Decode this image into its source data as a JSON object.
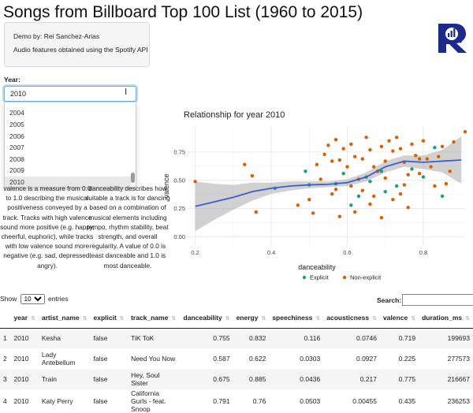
{
  "page": {
    "title": "Songs from Billboard Top 100 List (1960 to 2015)",
    "credits": [
      "Demo by: Rei Sanchez-Arias",
      "Audio features obtained using the Spotify API"
    ]
  },
  "year_select": {
    "label": "Year:",
    "value": "2010",
    "options": [
      "2004",
      "2005",
      "2006",
      "2007",
      "2008",
      "2009",
      "2010"
    ],
    "selected": "2010"
  },
  "descriptions": {
    "valence": "valence is a measure from 0.0 to 1.0 describing the musical positiveness conveyed by a track. Tracks with high valence sound more positive (e.g. happy, cheerful, euphoric), while tracks with low valence sound more negative (e.g. sad, depressed, angry).",
    "danceability": "danceability describes how suitable a track is for dancing based on a combination of musical elements including tempo, rhythm stability, beat strength, and overall regularity. A value of 0.0 is least danceable and 1.0 is most danceable."
  },
  "logo": {
    "letter": "R",
    "color": "#1c2a8c",
    "icon": "r-logo-icon"
  },
  "chart_data": {
    "type": "scatter",
    "title": "Relationship for year 2010",
    "xlabel": "danceability",
    "ylabel": "valence",
    "xlim": [
      0.18,
      0.91
    ],
    "ylim": [
      -0.08,
      0.98
    ],
    "xticks": [
      "0.2",
      "0.4",
      "0.6",
      "0.8"
    ],
    "yticks": [
      "0.00",
      "0.25",
      "0.50",
      "0.75"
    ],
    "grid": true,
    "legend_position": "bottom",
    "legend_title": "",
    "series": [
      {
        "name": "Explicit",
        "color": "#1b9e77",
        "points": [
          [
            0.41,
            0.43
          ],
          [
            0.49,
            0.58
          ],
          [
            0.5,
            0.46
          ],
          [
            0.59,
            0.56
          ],
          [
            0.61,
            0.28
          ],
          [
            0.63,
            0.36
          ],
          [
            0.65,
            0.53
          ],
          [
            0.66,
            0.49
          ],
          [
            0.69,
            0.58
          ],
          [
            0.73,
            0.45
          ],
          [
            0.77,
            0.6
          ],
          [
            0.8,
            0.53
          ],
          [
            0.83,
            0.79
          ],
          [
            0.57,
            0.47
          ],
          [
            0.85,
            0.36
          ],
          [
            0.7,
            0.4
          ]
        ]
      },
      {
        "name": "Non-explicit",
        "color": "#d95f02",
        "points": [
          [
            0.2,
            0.49
          ],
          [
            0.33,
            0.64
          ],
          [
            0.35,
            0.54
          ],
          [
            0.36,
            0.22
          ],
          [
            0.47,
            0.28
          ],
          [
            0.5,
            0.33
          ],
          [
            0.51,
            0.21
          ],
          [
            0.53,
            0.51
          ],
          [
            0.54,
            0.73
          ],
          [
            0.55,
            0.81
          ],
          [
            0.56,
            0.67
          ],
          [
            0.57,
            0.42
          ],
          [
            0.58,
            0.18
          ],
          [
            0.59,
            0.78
          ],
          [
            0.6,
            0.62
          ],
          [
            0.61,
            0.82
          ],
          [
            0.62,
            0.71
          ],
          [
            0.63,
            0.51
          ],
          [
            0.64,
            0.69
          ],
          [
            0.65,
            0.88
          ],
          [
            0.66,
            0.29
          ],
          [
            0.67,
            0.62
          ],
          [
            0.68,
            0.58
          ],
          [
            0.69,
            0.8
          ],
          [
            0.7,
            0.67
          ],
          [
            0.71,
            0.85
          ],
          [
            0.72,
            0.76
          ],
          [
            0.73,
            0.88
          ],
          [
            0.74,
            0.78
          ],
          [
            0.75,
            0.66
          ],
          [
            0.76,
            0.55
          ],
          [
            0.77,
            0.82
          ],
          [
            0.78,
            0.72
          ],
          [
            0.79,
            0.69
          ],
          [
            0.8,
            0.85
          ],
          [
            0.82,
            0.62
          ],
          [
            0.84,
            0.71
          ],
          [
            0.86,
            0.47
          ],
          [
            0.88,
            0.84
          ],
          [
            0.91,
            0.93
          ],
          [
            0.57,
            0.86
          ],
          [
            0.64,
            0.41
          ],
          [
            0.67,
            0.36
          ],
          [
            0.75,
            0.46
          ],
          [
            0.56,
            0.38
          ],
          [
            0.69,
            0.17
          ],
          [
            0.74,
            0.38
          ],
          [
            0.79,
            0.56
          ],
          [
            0.62,
            0.22
          ],
          [
            0.72,
            0.33
          ],
          [
            0.83,
            0.45
          ],
          [
            0.52,
            0.64
          ],
          [
            0.61,
            0.45
          ],
          [
            0.7,
            0.52
          ],
          [
            0.85,
            0.8
          ],
          [
            0.66,
            0.77
          ],
          [
            0.58,
            0.68
          ],
          [
            0.76,
            0.26
          ],
          [
            0.81,
            0.69
          ],
          [
            0.87,
            0.58
          ]
        ]
      }
    ],
    "smooth": {
      "x": [
        0.2,
        0.25,
        0.3,
        0.35,
        0.4,
        0.45,
        0.5,
        0.55,
        0.6,
        0.65,
        0.7,
        0.75,
        0.8,
        0.85,
        0.9
      ],
      "y": [
        0.27,
        0.31,
        0.35,
        0.4,
        0.43,
        0.45,
        0.46,
        0.465,
        0.48,
        0.53,
        0.62,
        0.67,
        0.66,
        0.67,
        0.68
      ],
      "lower": [
        0.05,
        0.15,
        0.24,
        0.32,
        0.38,
        0.41,
        0.43,
        0.44,
        0.45,
        0.49,
        0.57,
        0.62,
        0.6,
        0.57,
        0.47
      ],
      "upper": [
        0.49,
        0.47,
        0.46,
        0.48,
        0.48,
        0.49,
        0.49,
        0.49,
        0.51,
        0.57,
        0.67,
        0.72,
        0.72,
        0.77,
        0.89
      ],
      "color": "#3b5fce"
    }
  },
  "table_controls": {
    "show": "Show",
    "entries": "entries",
    "length_value": "10",
    "search_label": "Search:"
  },
  "table": {
    "columns": [
      "",
      "year",
      "artist_name",
      "explicit",
      "track_name",
      "danceability",
      "energy",
      "speechiness",
      "acousticness",
      "valence",
      "duration_ms"
    ],
    "rows": [
      [
        "1",
        "2010",
        "Kesha",
        "false",
        "TiK ToK",
        "0.755",
        "0.832",
        "0.116",
        "0.0746",
        "0.719",
        "199693"
      ],
      [
        "2",
        "2010",
        "Lady Antebellum",
        "false",
        "Need You Now",
        "0.587",
        "0.622",
        "0.0303",
        "0.0927",
        "0.225",
        "277573"
      ],
      [
        "3",
        "2010",
        "Train",
        "false",
        "Hey, Soul Sister",
        "0.675",
        "0.885",
        "0.0436",
        "0.217",
        "0.775",
        "216667"
      ],
      [
        "4",
        "2010",
        "Katy Perry",
        "false",
        "California Gurls - feat. Snoop",
        "0.791",
        "0.76",
        "0.0503",
        "0.00455",
        "0.435",
        "236253"
      ]
    ]
  }
}
